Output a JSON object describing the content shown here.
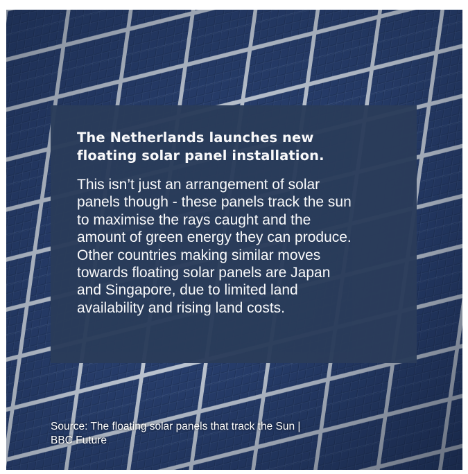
{
  "post": {
    "headline": "The Netherlands launches new\nfloating solar panel installation.",
    "body": "This isn’t just an arrangement of solar\npanels though - these panels track the sun\nto maximise the rays caught and the\namount of green energy they can produce.\nOther countries making similar moves\ntowards floating solar panels are Japan\nand Singapore, due to limited land\navailability and rising land costs.",
    "source": "Source: The floating solar panels that track the Sun |\nBBC Future"
  },
  "colors": {
    "card": "#2a3c5a",
    "panel_cell": "#243a66",
    "panel_frame": "#c9d6e6",
    "text": "#ffffff"
  },
  "icons": {
    "background": "solar-panel-array-photo"
  }
}
